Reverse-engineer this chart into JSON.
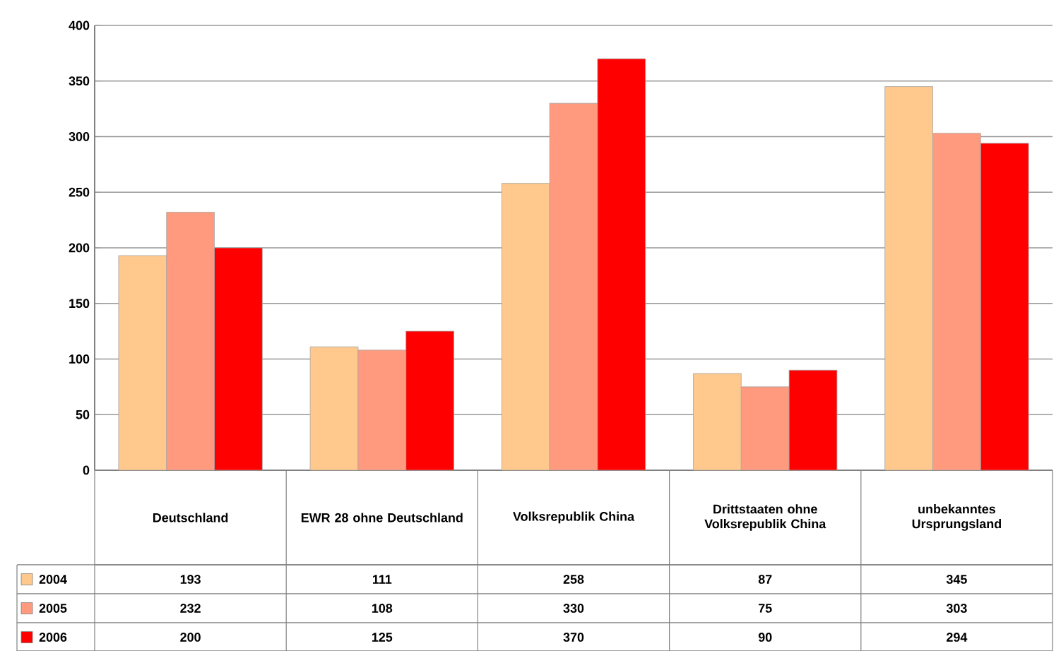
{
  "chart_data": {
    "type": "bar",
    "categories": [
      "Deutschland",
      "EWR 28 ohne Deutschland",
      "Volksrepublik China",
      "Drittstaaten ohne Volksrepublik China",
      "unbekanntes Ursprungsland"
    ],
    "series": [
      {
        "name": "2004",
        "color": "#ffc88c",
        "values": [
          193,
          111,
          258,
          87,
          345
        ]
      },
      {
        "name": "2005",
        "color": "#ff9a7e",
        "values": [
          232,
          108,
          330,
          75,
          303
        ]
      },
      {
        "name": "2006",
        "color": "#ff0000",
        "values": [
          200,
          125,
          370,
          90,
          294
        ]
      }
    ],
    "ylim": [
      0,
      400
    ],
    "yticks": [
      0,
      50,
      100,
      150,
      200,
      250,
      300,
      350,
      400
    ],
    "grid": "y",
    "data_labels": true,
    "legend": "bottom left"
  }
}
